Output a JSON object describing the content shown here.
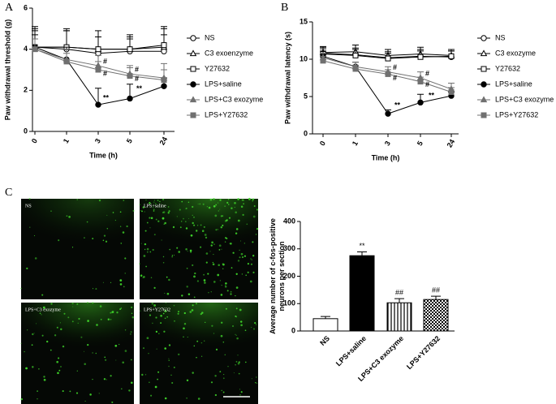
{
  "panels": [
    "A",
    "B",
    "C"
  ],
  "images": {
    "labels": [
      "NS",
      "LPS+saline",
      "LPS+C3 exozyme",
      "LPS+Y27632"
    ]
  },
  "chart_data": [
    {
      "type": "line",
      "xlabel": "Time (h)",
      "ylabel": [
        "Paw withdrawal threshold (g)"
      ],
      "categories": [
        "0",
        "1",
        "3",
        "5",
        "24"
      ],
      "ylim": [
        0,
        6
      ],
      "yticks": [
        0,
        2,
        4,
        6
      ],
      "series": [
        {
          "name": "NS",
          "color": "#000000",
          "marker": "circle",
          "filled": false,
          "values": [
            4.1,
            4.0,
            3.8,
            3.9,
            3.9
          ],
          "errors": [
            0.9,
            0.9,
            0.8,
            0.7,
            0.8
          ]
        },
        {
          "name": "C3 exoenzyme",
          "color": "#000000",
          "marker": "triangle",
          "filled": false,
          "values": [
            4.1,
            4.1,
            4.0,
            4.0,
            4.1
          ],
          "errors": [
            1.0,
            0.9,
            0.9,
            0.7,
            0.9
          ]
        },
        {
          "name": "Y27632",
          "color": "#000000",
          "marker": "square",
          "filled": false,
          "values": [
            4.1,
            4.1,
            4.0,
            4.0,
            4.2
          ],
          "errors": [
            0.8,
            0.8,
            0.6,
            0.5,
            0.9
          ]
        },
        {
          "name": "LPS+saline",
          "color": "#000000",
          "marker": "circle",
          "filled": true,
          "values": [
            4.1,
            3.5,
            1.3,
            1.6,
            2.2
          ],
          "errors": [
            0.6,
            0.6,
            0.8,
            0.7,
            0.4
          ]
        },
        {
          "name": "LPS+C3 exozyme",
          "color": "#707070",
          "marker": "triangle",
          "filled": true,
          "values": [
            4.0,
            3.5,
            3.2,
            2.8,
            2.6
          ],
          "errors": [
            0.5,
            0.5,
            0.5,
            0.4,
            0.7
          ]
        },
        {
          "name": "LPS+Y27632",
          "color": "#707070",
          "marker": "square",
          "filled": true,
          "values": [
            4.0,
            3.4,
            3.0,
            2.7,
            2.5
          ],
          "errors": [
            0.5,
            0.4,
            0.4,
            0.4,
            0.5
          ]
        }
      ],
      "annotations": [
        "**",
        "#",
        "#",
        "**",
        "#",
        "#"
      ]
    },
    {
      "type": "line",
      "xlabel": "Time (h)",
      "ylabel": [
        "Paw withdrawal latency (s)"
      ],
      "categories": [
        "0",
        "1",
        "3",
        "5",
        "24"
      ],
      "ylim": [
        0,
        15
      ],
      "yticks": [
        0,
        5,
        10,
        15
      ],
      "series": [
        {
          "name": "NS",
          "color": "#000000",
          "marker": "circle",
          "filled": false,
          "values": [
            10.8,
            10.6,
            10.2,
            10.4,
            10.3
          ],
          "errors": [
            0.8,
            0.9,
            0.8,
            0.9,
            0.8
          ]
        },
        {
          "name": "C3 exozyme",
          "color": "#000000",
          "marker": "triangle",
          "filled": false,
          "values": [
            10.9,
            11.0,
            10.5,
            10.7,
            10.5
          ],
          "errors": [
            0.8,
            0.9,
            0.8,
            0.9,
            0.8
          ]
        },
        {
          "name": "Y27632",
          "color": "#000000",
          "marker": "square",
          "filled": false,
          "values": [
            10.7,
            10.5,
            10.1,
            10.3,
            10.4
          ],
          "errors": [
            0.7,
            0.8,
            0.7,
            0.8,
            0.7
          ]
        },
        {
          "name": "LPS+saline",
          "color": "#000000",
          "marker": "circle",
          "filled": true,
          "values": [
            10.4,
            9.0,
            2.7,
            4.2,
            5.1
          ],
          "errors": [
            0.7,
            0.6,
            0.5,
            1.1,
            0.5
          ]
        },
        {
          "name": "LPS+C3 exozyme",
          "color": "#707070",
          "marker": "triangle",
          "filled": true,
          "values": [
            10.2,
            9.0,
            8.3,
            7.5,
            6.0
          ],
          "errors": [
            0.6,
            0.6,
            0.7,
            0.8,
            0.8
          ]
        },
        {
          "name": "LPS+Y27632",
          "color": "#707070",
          "marker": "square",
          "filled": true,
          "values": [
            9.8,
            8.7,
            8.0,
            7.0,
            5.6
          ],
          "errors": [
            0.6,
            0.5,
            0.6,
            0.6,
            0.6
          ]
        }
      ],
      "annotations": [
        "**",
        "#",
        "#",
        "**",
        "#",
        "#"
      ]
    },
    {
      "type": "bar",
      "ylabel": [
        "Average number of c-fos-positive",
        "neurons per section"
      ],
      "categories": [
        "NS",
        "LPS+saline",
        "LPS+C3 exozyme",
        "LPS+Y27632"
      ],
      "values": [
        45,
        275,
        103,
        115
      ],
      "errors": [
        8,
        14,
        15,
        12
      ],
      "fills": [
        "white",
        "black",
        "vertical",
        "checker"
      ],
      "ylim": [
        0,
        400
      ],
      "yticks": [
        0,
        100,
        200,
        300,
        400
      ],
      "annotations": [
        "**",
        "##",
        "##"
      ]
    }
  ]
}
